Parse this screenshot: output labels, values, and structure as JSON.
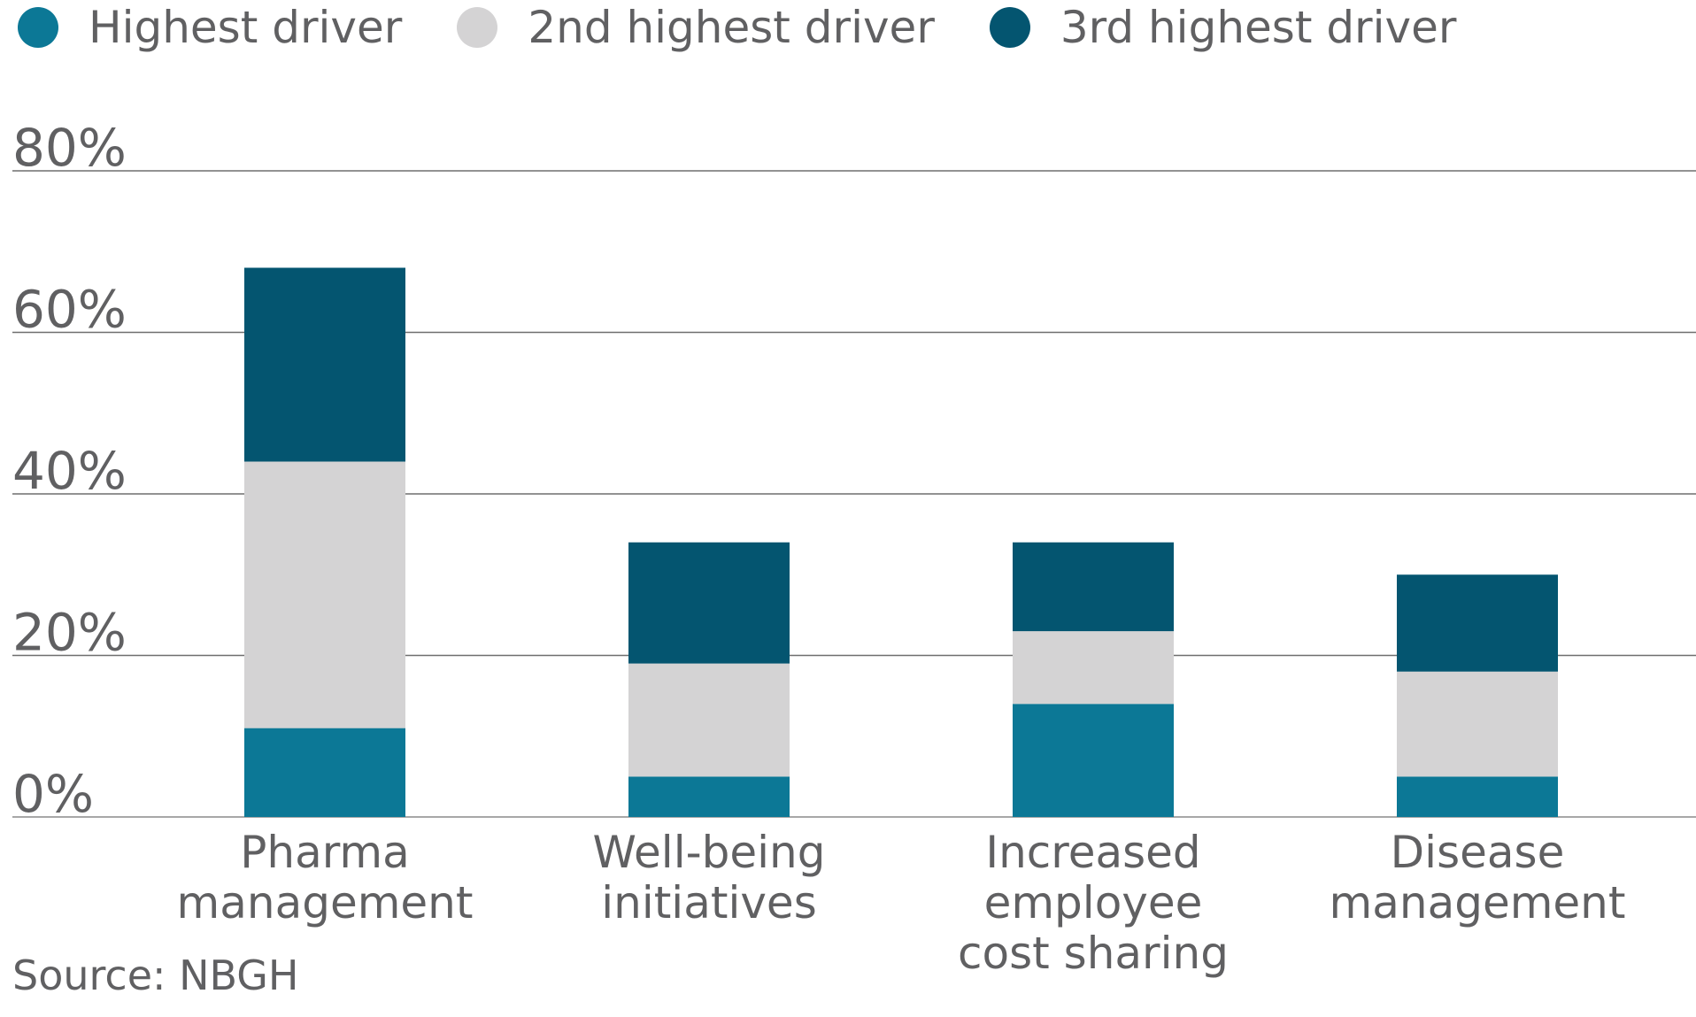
{
  "chart_data": {
    "type": "bar",
    "stacked": true,
    "categories": [
      [
        "Pharma",
        "management"
      ],
      [
        "Well-being",
        "initiatives"
      ],
      [
        "Increased",
        "employee",
        "cost sharing"
      ],
      [
        "Disease",
        "management"
      ]
    ],
    "series": [
      {
        "name": "Highest driver",
        "color": "#0c7896",
        "values": [
          11,
          5,
          14,
          5
        ]
      },
      {
        "name": "2nd highest driver",
        "color": "#d4d3d4",
        "values": [
          33,
          14,
          9,
          13
        ]
      },
      {
        "name": "3rd highest driver",
        "color": "#045570",
        "values": [
          24,
          15,
          11,
          12
        ]
      }
    ],
    "y_ticks": [
      "0%",
      "20%",
      "40%",
      "60%",
      "80%"
    ],
    "ylim": [
      0,
      80
    ],
    "grid": true,
    "legend_position": "top-left",
    "source": "Source: NBGH"
  }
}
